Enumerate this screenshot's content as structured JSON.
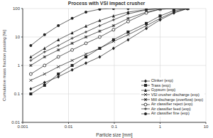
{
  "chart_data": {
    "type": "line",
    "title": "Process with VSI impact crusher",
    "x_label": "Particle size [mm]",
    "y_label": "Cumulative mass fraction passing [%]",
    "log": true,
    "grid": true,
    "legend": "lower right",
    "xlim": [
      0.001,
      10
    ],
    "xticks": [
      0.001,
      0.01,
      0.1,
      1,
      10
    ],
    "ylim": [
      0.01,
      100
    ],
    "yticks": [
      0.01,
      0.1,
      1,
      10,
      100
    ],
    "x": [
      0.0015,
      0.003,
      0.006,
      0.012,
      0.024,
      0.048,
      0.096,
      0.2,
      0.5,
      1,
      2,
      4
    ],
    "series": [
      {
        "name": "Clinker (exp)",
        "color": "#222222",
        "marker": "diamond",
        "line_style": "solid",
        "values": [
          0.15,
          0.25,
          0.4,
          0.7,
          1.2,
          2,
          4,
          8,
          20,
          40,
          70,
          100
        ]
      },
      {
        "name": "Trass (exp)",
        "color": "#222222",
        "marker": "square",
        "line_style": "solid",
        "values": [
          0.1,
          0.2,
          0.5,
          1,
          2,
          4,
          8,
          15,
          30,
          55,
          85,
          100
        ]
      },
      {
        "name": "Gypsum (exp)",
        "color": "#222222",
        "marker": "triangle",
        "line_style": "solid",
        "values": [
          2,
          4,
          8,
          14,
          24,
          38,
          55,
          75,
          92,
          100,
          100,
          100
        ]
      },
      {
        "name": "VSI crusher discharge (exp)",
        "color": "#222222",
        "marker": "x",
        "line_style": "solid",
        "values": [
          0.3,
          0.5,
          0.9,
          1.5,
          2.5,
          4,
          7,
          12,
          25,
          45,
          75,
          100
        ]
      },
      {
        "name": "Mill discharge (overflow) (exp)",
        "color": "#222222",
        "marker": "star",
        "line_style": "solid",
        "values": [
          1,
          2,
          3.5,
          6,
          10,
          16,
          25,
          45,
          75,
          95,
          100,
          100
        ]
      },
      {
        "name": "Air classifier reject (exp)",
        "color": "#222222",
        "marker": "circle_open",
        "line_style": "solid",
        "values": [
          0.5,
          1,
          2,
          3.5,
          6,
          10,
          18,
          35,
          70,
          95,
          100,
          100
        ]
      },
      {
        "name": "Air classifier feed (exp)",
        "color": "#222222",
        "marker": "plus",
        "line_style": "solid",
        "values": [
          1.5,
          3,
          5,
          9,
          15,
          25,
          40,
          65,
          90,
          100,
          100,
          100
        ]
      },
      {
        "name": "Air classifier fine (exp)",
        "color": "#222222",
        "marker": "circle",
        "line_style": "solid",
        "values": [
          5,
          12,
          25,
          45,
          75,
          95,
          100,
          100,
          100,
          100,
          100,
          100
        ]
      }
    ]
  }
}
